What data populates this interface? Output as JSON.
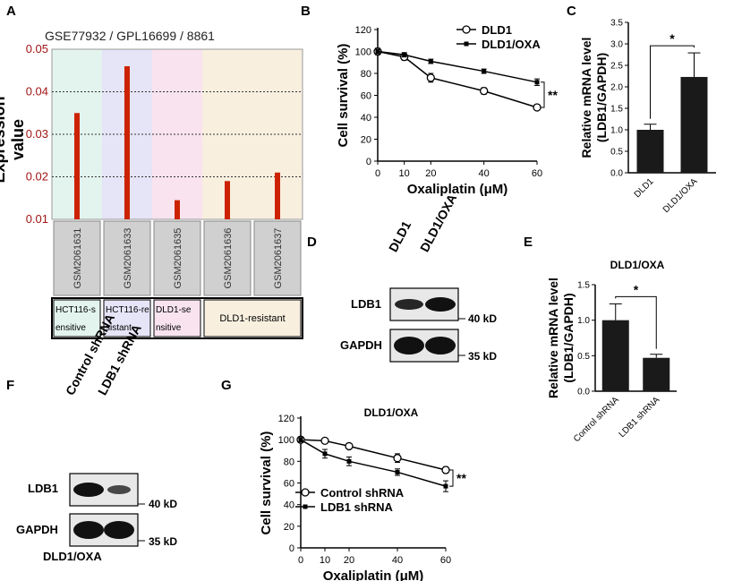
{
  "panel_labels": {
    "a": "A",
    "b": "B",
    "c": "C",
    "d": "D",
    "e": "E",
    "f": "F",
    "g": "G"
  },
  "chart_data": [
    {
      "id": "A",
      "type": "bar",
      "title": "GSE77932 / GPL16699 / 8861",
      "ylabel": "Expression value",
      "ylim": [
        0.01,
        0.05
      ],
      "yticks": [
        "0.01",
        "0.02",
        "0.03",
        "0.04",
        "0.05"
      ],
      "categories": [
        "GSM2061631",
        "GSM2061633",
        "GSM2061635",
        "GSM2061636",
        "GSM2061637"
      ],
      "values": [
        0.035,
        0.046,
        0.0145,
        0.019,
        0.021
      ],
      "groups": [
        {
          "line1": "HCT116-s",
          "line2": "ensitive",
          "color": "#e3f4ee"
        },
        {
          "line1": "HCT116-re",
          "line2": "sistant",
          "color": "#e6e4f7"
        },
        {
          "line1": "DLD1-se",
          "line2": "nsitive",
          "color": "#f8e3ef"
        },
        {
          "line1": "DLD1-resistant",
          "line2": "",
          "color": "#f8efdf"
        }
      ],
      "bar_color": "#cc2200"
    },
    {
      "id": "B",
      "type": "line",
      "xlabel": "Oxaliplatin (μM)",
      "ylabel": "Cell survival (%)",
      "x": [
        0,
        10,
        20,
        40,
        60
      ],
      "xticks": [
        "0",
        "10",
        "20",
        "40",
        "60"
      ],
      "yticks": [
        "0",
        "20",
        "40",
        "60",
        "80",
        "100",
        "120"
      ],
      "ylim": [
        0,
        120
      ],
      "series": [
        {
          "name": "DLD1",
          "marker": "open-circle",
          "values": [
            100,
            95,
            76,
            64,
            49
          ],
          "err": [
            3,
            3,
            4,
            3,
            2
          ]
        },
        {
          "name": "DLD1/OXA",
          "marker": "filled-square",
          "values": [
            100,
            97,
            91,
            82,
            72
          ],
          "err": [
            2,
            2,
            2,
            2,
            3
          ]
        }
      ],
      "significance": "**"
    },
    {
      "id": "C",
      "type": "bar",
      "ylabel": "Relative mRNA level (LDB1/GAPDH)",
      "ylabel_line1": "Relative mRNA level",
      "ylabel_line2": "(LDB1/GAPDH)",
      "categories": [
        "DLD1",
        "DLD1/OXA"
      ],
      "values": [
        1.0,
        2.23
      ],
      "err": [
        0.13,
        0.56
      ],
      "ylim": [
        0,
        3.5
      ],
      "yticks": [
        "0.0",
        "0.5",
        "1.0",
        "1.5",
        "2.0",
        "2.5",
        "3.0",
        "3.5"
      ],
      "significance": "*"
    },
    {
      "id": "E",
      "type": "bar",
      "title": "DLD1/OXA",
      "ylabel": "Relative mRNA level (LDB1/GAPDH)",
      "ylabel_line1": "Relative mRNA level",
      "ylabel_line2": "(LDB1/GAPDH)",
      "categories": [
        "Control shRNA",
        "LDB1 shRNA"
      ],
      "values": [
        1.0,
        0.47
      ],
      "err": [
        0.23,
        0.05
      ],
      "ylim": [
        0,
        1.5
      ],
      "yticks": [
        "0.0",
        "0.5",
        "1.0",
        "1.5"
      ],
      "significance": "*"
    },
    {
      "id": "G",
      "type": "line",
      "title": "DLD1/OXA",
      "xlabel": "Oxaliplatin (μM)",
      "ylabel": "Cell survival (%)",
      "x": [
        0,
        10,
        20,
        40,
        60
      ],
      "xticks": [
        "0",
        "10",
        "20",
        "40",
        "60"
      ],
      "yticks": [
        "0",
        "20",
        "40",
        "60",
        "80",
        "100",
        "120"
      ],
      "ylim": [
        0,
        120
      ],
      "series": [
        {
          "name": "Control shRNA",
          "marker": "open-circle",
          "values": [
            100,
            99,
            94,
            83,
            72
          ],
          "err": [
            1,
            1,
            2,
            4,
            3
          ]
        },
        {
          "name": "LDB1 shRNA",
          "marker": "filled-square",
          "values": [
            100,
            87,
            80,
            70,
            57
          ],
          "err": [
            2,
            4,
            4,
            3,
            5
          ]
        }
      ],
      "significance": "**"
    }
  ],
  "blot_d": {
    "lanes": [
      "DLD1",
      "DLD1/OXA"
    ],
    "rows": [
      {
        "name": "LDB1",
        "size": "40 kD"
      },
      {
        "name": "GAPDH",
        "size": "35 kD"
      }
    ]
  },
  "blot_f": {
    "lanes": [
      "Control shRNA",
      "LDB1 shRNA"
    ],
    "rows": [
      {
        "name": "LDB1",
        "size": "40 kD"
      },
      {
        "name": "GAPDH",
        "size": "35 kD"
      }
    ],
    "caption": "DLD1/OXA"
  }
}
